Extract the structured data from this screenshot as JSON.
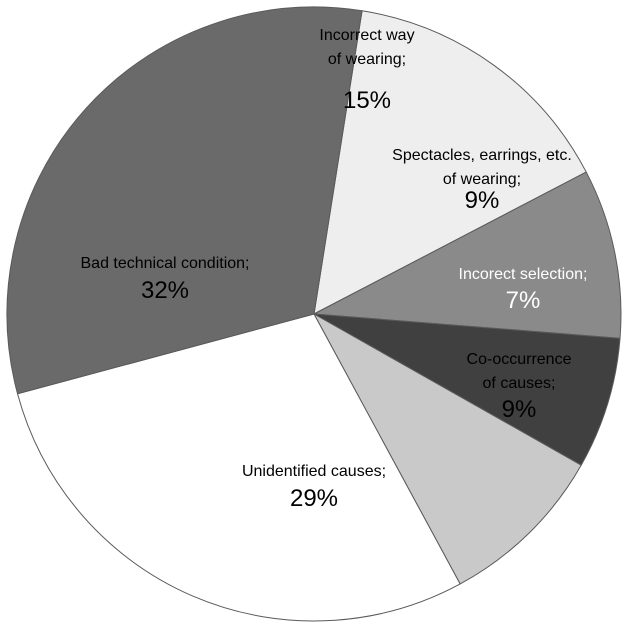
{
  "chart_data": {
    "type": "pie",
    "title": "",
    "categories": [
      "Incorrect way of wearing;",
      "Spectacles, earrings, etc. of wearing;",
      "Incorect selection;",
      "Co-occurrence of causes;",
      "Unidentified causes;",
      "Bad technical condition;"
    ],
    "values": [
      15,
      9,
      7,
      9,
      29,
      32
    ],
    "value_labels": [
      "15%",
      "9%",
      "7%",
      "9%",
      "29%",
      "32%"
    ],
    "label_lines": [
      [
        "Incorrect way",
        "of wearing;"
      ],
      [
        "Spectacles, earrings, etc.",
        "of wearing;"
      ],
      [
        "Incorect selection;"
      ],
      [
        "Co-occurrence",
        "of causes;"
      ],
      [
        "Unidentified causes;"
      ],
      [
        "Bad technical condition;"
      ]
    ],
    "colors": [
      "#eeeeee",
      "#8a8a8a",
      "#404040",
      "#c9c9c9",
      "#ffffff",
      "#6a6a6a"
    ],
    "label_colors": [
      "#000000",
      "#000000",
      "#ffffff",
      "#000000",
      "#000000",
      "#000000"
    ],
    "slice_outline": "#5a5a5a",
    "start_angle_deg": -81,
    "direction": "clockwise",
    "legend": "none"
  }
}
